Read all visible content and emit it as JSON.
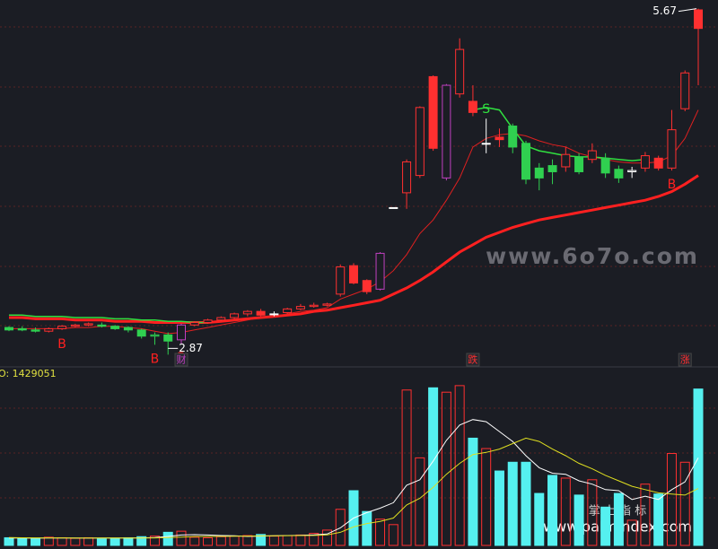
{
  "chart_data": {
    "type": "candlestick",
    "open": [
      3.09,
      3.08,
      3.07,
      3.06,
      3.08,
      3.1,
      3.11,
      3.11,
      3.1,
      3.09,
      3.07,
      3.02,
      3.03,
      2.99,
      3.11,
      3.13,
      3.15,
      3.17,
      3.2,
      3.22,
      3.2,
      3.21,
      3.24,
      3.26,
      3.27,
      3.36,
      3.59,
      3.47,
      3.4,
      4.06,
      4.18,
      4.32,
      5.12,
      4.3,
      4.98,
      4.92,
      4.58,
      4.63,
      4.72,
      4.58,
      4.38,
      4.4,
      4.39,
      4.47,
      4.45,
      4.46,
      4.37,
      4.35,
      4.38,
      4.46,
      4.38,
      4.86,
      5.66
    ],
    "close": [
      3.07,
      3.07,
      3.06,
      3.08,
      3.1,
      3.11,
      3.12,
      3.1,
      3.08,
      3.07,
      3.02,
      3.03,
      2.98,
      3.11,
      3.13,
      3.15,
      3.17,
      3.2,
      3.22,
      3.19,
      3.2,
      3.24,
      3.26,
      3.27,
      3.28,
      3.58,
      3.45,
      3.38,
      3.69,
      4.06,
      4.43,
      4.87,
      4.54,
      5.05,
      5.34,
      4.83,
      4.58,
      4.61,
      4.55,
      4.29,
      4.3,
      4.35,
      4.49,
      4.35,
      4.52,
      4.34,
      4.3,
      4.36,
      4.48,
      4.38,
      4.69,
      5.15,
      5.51
    ],
    "high": [
      3.1,
      3.1,
      3.09,
      3.09,
      3.11,
      3.12,
      3.13,
      3.13,
      3.11,
      3.1,
      3.08,
      3.05,
      3.05,
      3.12,
      3.14,
      3.16,
      3.18,
      3.21,
      3.23,
      3.24,
      3.22,
      3.25,
      3.28,
      3.29,
      3.29,
      3.6,
      3.61,
      3.48,
      3.7,
      4.06,
      4.45,
      4.88,
      5.13,
      5.06,
      5.43,
      5.05,
      4.78,
      4.7,
      4.74,
      4.6,
      4.42,
      4.45,
      4.55,
      4.5,
      4.58,
      4.5,
      4.4,
      4.39,
      4.51,
      4.48,
      4.85,
      5.17,
      5.67
    ],
    "low": [
      3.06,
      3.06,
      3.05,
      3.05,
      3.07,
      3.09,
      3.1,
      3.09,
      3.07,
      3.05,
      3.0,
      2.95,
      2.87,
      2.96,
      3.1,
      3.12,
      3.14,
      3.16,
      3.18,
      3.18,
      3.18,
      3.2,
      3.23,
      3.25,
      3.26,
      3.34,
      3.44,
      3.36,
      3.39,
      4.06,
      4.05,
      4.3,
      4.52,
      4.28,
      4.95,
      4.8,
      4.5,
      4.55,
      4.5,
      4.25,
      4.2,
      4.25,
      4.35,
      4.33,
      4.42,
      4.3,
      4.26,
      4.3,
      4.35,
      4.36,
      4.36,
      4.84,
      5.05
    ],
    "candle_colors": [
      "#30d050",
      "#30d050",
      "#30d050",
      "#ff3030",
      "#ff3030",
      "#ff3030",
      "#ff3030",
      "#30d050",
      "#30d050",
      "#30d050",
      "#30d050",
      "#30d050",
      "#30d050",
      "#c040c0",
      "#ff3030",
      "#ff3030",
      "#ff3030",
      "#ff3030",
      "#ff3030",
      "#ff3030",
      "#ffffff",
      "#ff3030",
      "#ff3030",
      "#ff3030",
      "#ff3030",
      "#ff3030",
      "#ff3030",
      "#ff3030",
      "#c040c0",
      "#ffffff",
      "#ff3030",
      "#ff3030",
      "#ff3030",
      "#c040c0",
      "#ff3030",
      "#ff3030",
      "#ffffff",
      "#ff3030",
      "#30d050",
      "#30d050",
      "#30d050",
      "#30d050",
      "#ff3030",
      "#30d050",
      "#ff3030",
      "#30d050",
      "#30d050",
      "#ffffff",
      "#ff3030",
      "#ff3030",
      "#ff3030",
      "#ff3030",
      "#ff3030"
    ],
    "ma_short": [
      3.08,
      3.08,
      3.08,
      3.08,
      3.08,
      3.09,
      3.09,
      3.1,
      3.1,
      3.09,
      3.08,
      3.06,
      3.04,
      3.05,
      3.07,
      3.09,
      3.11,
      3.13,
      3.15,
      3.17,
      3.18,
      3.2,
      3.22,
      3.23,
      3.25,
      3.32,
      3.36,
      3.4,
      3.46,
      3.55,
      3.68,
      3.85,
      3.96,
      4.12,
      4.3,
      4.55,
      4.62,
      4.65,
      4.66,
      4.64,
      4.6,
      4.57,
      4.55,
      4.5,
      4.47,
      4.45,
      4.43,
      4.42,
      4.42,
      4.43,
      4.48,
      4.62,
      4.85
    ],
    "ma_long": [
      3.17,
      3.17,
      3.16,
      3.16,
      3.16,
      3.15,
      3.15,
      3.15,
      3.14,
      3.14,
      3.14,
      3.13,
      3.13,
      3.13,
      3.13,
      3.13,
      3.14,
      3.15,
      3.16,
      3.17,
      3.18,
      3.19,
      3.2,
      3.22,
      3.23,
      3.25,
      3.27,
      3.29,
      3.31,
      3.36,
      3.41,
      3.47,
      3.54,
      3.62,
      3.7,
      3.76,
      3.82,
      3.86,
      3.9,
      3.93,
      3.96,
      3.98,
      4.0,
      4.02,
      4.04,
      4.06,
      4.08,
      4.1,
      4.12,
      4.15,
      4.19,
      4.25,
      4.32
    ],
    "ma_green": [
      3.19,
      3.19,
      3.18,
      3.18,
      3.18,
      3.17,
      3.17,
      3.17,
      3.16,
      3.16,
      3.15,
      3.15,
      3.14,
      3.14,
      3.13,
      3.13,
      null,
      null,
      null,
      null,
      null,
      null,
      null,
      null,
      null,
      null,
      null,
      null,
      null,
      null,
      null,
      null,
      null,
      null,
      null,
      4.85,
      4.87,
      4.85,
      4.7,
      4.56,
      4.52,
      4.5,
      4.48,
      4.47,
      4.47,
      4.46,
      4.45,
      4.44,
      4.45,
      null,
      null,
      null,
      null
    ],
    "ylim": [
      2.8,
      5.74
    ],
    "high_label": 5.67,
    "low_label": 2.87,
    "signals": [
      null,
      null,
      null,
      null,
      "B",
      null,
      null,
      null,
      null,
      null,
      null,
      "B",
      null,
      "B",
      null,
      null,
      null,
      null,
      null,
      null,
      null,
      null,
      null,
      null,
      null,
      null,
      null,
      null,
      null,
      null,
      null,
      null,
      null,
      null,
      null,
      null,
      "S",
      null,
      null,
      null,
      null,
      null,
      null,
      null,
      null,
      null,
      null,
      null,
      null,
      null,
      "B",
      null,
      null
    ],
    "events": [
      null,
      null,
      null,
      null,
      null,
      null,
      null,
      null,
      null,
      null,
      null,
      null,
      null,
      "财",
      null,
      null,
      null,
      null,
      null,
      null,
      null,
      null,
      null,
      null,
      null,
      null,
      null,
      null,
      null,
      null,
      null,
      null,
      null,
      null,
      null,
      "跌",
      null,
      null,
      null,
      null,
      null,
      null,
      null,
      null,
      null,
      null,
      null,
      null,
      null,
      null,
      null,
      "涨",
      null
    ],
    "volume_caption": "O: 1429051",
    "volume": [
      70000,
      65000,
      60000,
      75000,
      70000,
      65000,
      70000,
      60000,
      65000,
      70000,
      80000,
      85000,
      120000,
      130000,
      75000,
      70000,
      80000,
      85000,
      90000,
      100000,
      85000,
      90000,
      95000,
      110000,
      140000,
      330000,
      500000,
      310000,
      240000,
      190000,
      1420000,
      800000,
      1440000,
      1400000,
      1460000,
      980000,
      885000,
      680000,
      760000,
      760000,
      475000,
      640000,
      615000,
      460000,
      600000,
      350000,
      475000,
      230000,
      560000,
      470000,
      840000,
      760000,
      1429051
    ],
    "volume_ma_short": [
      68000,
      67000,
      66000,
      67000,
      68000,
      67000,
      66000,
      67000,
      68000,
      67000,
      69000,
      72000,
      82000,
      95000,
      98000,
      95000,
      90000,
      88000,
      82000,
      85000,
      88000,
      90000,
      92000,
      96000,
      104000,
      160000,
      250000,
      300000,
      340000,
      390000,
      550000,
      600000,
      770000,
      960000,
      1100000,
      1150000,
      1130000,
      1040000,
      950000,
      820000,
      710000,
      660000,
      650000,
      590000,
      560000,
      510000,
      500000,
      420000,
      450000,
      420000,
      510000,
      580000,
      800000
    ],
    "volume_ma_long": [
      71000,
      70000,
      69000,
      69000,
      69000,
      68000,
      68000,
      68000,
      68000,
      68000,
      68000,
      69000,
      71000,
      76000,
      81000,
      82000,
      83000,
      84000,
      85000,
      87000,
      88000,
      89000,
      90000,
      91000,
      96000,
      120000,
      170000,
      200000,
      220000,
      250000,
      370000,
      430000,
      530000,
      650000,
      750000,
      830000,
      850000,
      880000,
      930000,
      980000,
      950000,
      880000,
      820000,
      750000,
      700000,
      640000,
      590000,
      540000,
      510000,
      480000,
      470000,
      460000,
      520000
    ],
    "volume_lim": [
      0,
      1500000
    ],
    "up_color": "#ff3030",
    "down_volume_color": "#55f0f0",
    "watermarks": [
      "www.6o7o.com",
      "掌 上 指 标",
      "www.palmindex.com"
    ]
  }
}
